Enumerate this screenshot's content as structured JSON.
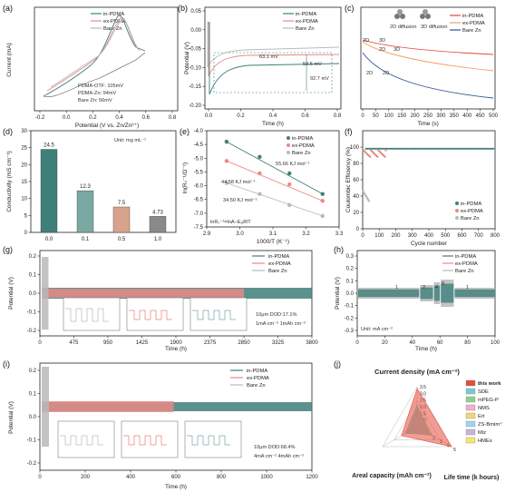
{
  "colors": {
    "in": "#3f7f7a",
    "ex": "#e88a86",
    "bare": "#b9b9b9",
    "blue": "#33549a",
    "orange": "#f3a06a",
    "red": "#e0463a"
  },
  "legend": {
    "in": "in-PDMA",
    "ex": "ex-PDMA",
    "bare": "Bare Zn"
  },
  "chart_data": [
    {
      "id": "a",
      "panel_label": "(a)",
      "type": "line",
      "xlabel": "Potential (V vs. Zn/Zn²⁺)",
      "ylabel": "Current (mA)",
      "xticks": [
        "-0.2",
        "0.0",
        "0.2",
        "0.4",
        "0.6",
        "0.8"
      ],
      "annotations": [
        "PDMA-OTF: 105mV",
        "PDMA-Zn: 94mV",
        "Bare Zn: 56mV"
      ],
      "series": [
        {
          "name": "in-PDMA"
        },
        {
          "name": "ex-PDMA"
        },
        {
          "name": "Bare Zn"
        }
      ]
    },
    {
      "id": "b",
      "panel_label": "(b)",
      "type": "line",
      "xlabel": "Time (h)",
      "ylabel": "Potential (V)",
      "xticks": [
        "0.0",
        "0.2",
        "0.4",
        "0.6",
        "0.8"
      ],
      "yticks": [
        "0.05",
        "0.00",
        "-0.05",
        "-0.10",
        "-0.15",
        "-0.20"
      ],
      "ylim": [
        -0.2,
        0.05
      ],
      "xlim": [
        0,
        0.8
      ],
      "annotations": [
        "63.1 mV",
        "59.5 mV",
        "92.7 mV"
      ],
      "series": [
        {
          "name": "in-PDMA",
          "plateau": -0.063
        },
        {
          "name": "ex-PDMA",
          "plateau": -0.0595
        },
        {
          "name": "Bare Zn",
          "plateau": -0.0927
        }
      ]
    },
    {
      "id": "c",
      "panel_label": "(c)",
      "type": "line",
      "xlabel": "Time (s)",
      "ylabel": "",
      "xticks": [
        "0",
        "50",
        "100",
        "150",
        "200",
        "250",
        "300",
        "350",
        "400",
        "450",
        "500"
      ],
      "annotations": [
        "2D",
        "3D",
        "2D",
        "3D",
        "2D",
        "2D",
        "2D diffusion",
        "3D diffusion"
      ],
      "series": [
        {
          "name": "in-PDMA"
        },
        {
          "name": "ex-PDMA"
        },
        {
          "name": "Bare Zn"
        }
      ]
    },
    {
      "id": "d",
      "panel_label": "(d)",
      "type": "bar",
      "xlabel": "Concentration",
      "ylabel": "Conductivity (mS cm⁻¹)",
      "unit_note": "Unit: mg mL⁻¹",
      "categories": [
        "0.0",
        "0.1",
        "0.5",
        "1.0"
      ],
      "values": [
        24.5,
        12.3,
        7.5,
        4.73
      ],
      "value_labels": [
        "24.5",
        "12.3",
        "7.5",
        "4.73"
      ],
      "yticks": [
        "0",
        "5",
        "10",
        "15",
        "20",
        "25",
        "30"
      ],
      "ylim": [
        0,
        30
      ]
    },
    {
      "id": "e",
      "panel_label": "(e)",
      "type": "scatter",
      "xlabel": "1000/T (K⁻¹)",
      "ylabel": "ln(Rₛ⁻¹/Ω⁻¹)",
      "xticks": [
        "2.9",
        "3.0",
        "3.1",
        "3.2",
        "3.3"
      ],
      "yticks": [
        "-4.0",
        "-4.5",
        "-5.0",
        "-5.5",
        "-6.0",
        "-6.5",
        "-7.0",
        "-7.5"
      ],
      "xlim": [
        2.9,
        3.3
      ],
      "ylim": [
        -7.5,
        -4.0
      ],
      "annotations": [
        "55.66 KJ mol⁻¹",
        "44.58 KJ mol⁻¹",
        "34.50 KJ mol⁻¹",
        "lnRₛ⁻¹=lnA−Eₐ/RT"
      ],
      "series": [
        {
          "name": "in-PDMA",
          "x": [
            2.96,
            3.06,
            3.15,
            3.25
          ],
          "y": [
            -4.4,
            -4.95,
            -5.55,
            -6.3
          ]
        },
        {
          "name": "ex-PDMA",
          "x": [
            2.96,
            3.06,
            3.15,
            3.25
          ],
          "y": [
            -5.1,
            -5.55,
            -5.95,
            -6.55
          ]
        },
        {
          "name": "Bare Zn",
          "x": [
            2.96,
            3.06,
            3.15,
            3.25
          ],
          "y": [
            -5.9,
            -6.3,
            -6.7,
            -7.1
          ]
        }
      ]
    },
    {
      "id": "f",
      "panel_label": "(f)",
      "type": "scatter",
      "xlabel": "Cycle number",
      "ylabel": "Coulombic Efficiency (%)",
      "xticks": [
        "0",
        "100",
        "200",
        "300",
        "400",
        "500",
        "600",
        "700",
        "800"
      ],
      "yticks": [
        "0",
        "20",
        "40",
        "60",
        "80",
        "100"
      ],
      "xlim": [
        0,
        800
      ],
      "ylim": [
        0,
        120
      ],
      "series": [
        {
          "name": "in-PDMA",
          "level": 98
        },
        {
          "name": "ex-PDMA",
          "level": 92
        },
        {
          "name": "Bare Zn",
          "level": 20
        }
      ]
    },
    {
      "id": "g",
      "panel_label": "(g)",
      "type": "line",
      "xlabel": "Time (h)",
      "ylabel": "Potential (V)",
      "xticks": [
        "0",
        "475",
        "950",
        "1425",
        "1900",
        "2375",
        "2850",
        "3325",
        "3800"
      ],
      "yticks": [
        "0.2",
        "0.1",
        "0.0",
        "-0.1",
        "-0.2"
      ],
      "xlim": [
        0,
        3800
      ],
      "annotations": [
        "10μm DOD:17.1%",
        "1mA cm⁻²   1mAh cm⁻²"
      ],
      "series": [
        {
          "name": "in-PDMA",
          "end_h": 3800
        },
        {
          "name": "ex-PDMA",
          "end_h": 2850
        },
        {
          "name": "Bare Zn",
          "end_h": 120
        }
      ]
    },
    {
      "id": "h",
      "panel_label": "(h)",
      "type": "line",
      "xlabel": "Time (h)",
      "ylabel": "Potential (V)",
      "xticks": [
        "0",
        "20",
        "40",
        "60",
        "80",
        "100"
      ],
      "yticks": [
        "0.3",
        "0.2",
        "0.1",
        "0.0",
        "-0.1",
        "-0.2",
        "-0.3"
      ],
      "xlim": [
        0,
        100
      ],
      "annotations": [
        "1",
        "2",
        "4",
        "8",
        "1",
        "Unit: mA cm⁻²"
      ],
      "series": [
        {
          "name": "in-PDMA"
        },
        {
          "name": "ex-PDMA"
        },
        {
          "name": "Bare Zn"
        }
      ]
    },
    {
      "id": "i",
      "panel_label": "(i)",
      "type": "line",
      "xlabel": "Time (h)",
      "ylabel": "Potential (V)",
      "xticks": [
        "0",
        "200",
        "400",
        "600",
        "800",
        "1000",
        "1200"
      ],
      "yticks": [
        "0.2",
        "0.1",
        "0.0",
        "-0.1",
        "-0.2"
      ],
      "xlim": [
        0,
        1200
      ],
      "annotations": [
        "10μm DOD:68.4%",
        "4mA cm⁻²   4mAh cm⁻²"
      ],
      "series": [
        {
          "name": "in-PDMA",
          "end_h": 1200
        },
        {
          "name": "ex-PDMA",
          "end_h": 590
        },
        {
          "name": "Bare Zn",
          "end_h": 40
        }
      ]
    },
    {
      "id": "j",
      "panel_label": "(j)",
      "type": "radar",
      "axes": [
        "Current density (mA cm⁻²)",
        "Areal capacity (mAh cm⁻²)",
        "Life time (k hours)"
      ],
      "ticks": [
        "1.0",
        "1.5",
        "2.0",
        "2.5",
        "3.0",
        "3.5"
      ],
      "life_ticks": [
        "1",
        "2",
        "3",
        "4",
        "5"
      ],
      "series": [
        {
          "name": "this work",
          "color": "#e74c3c"
        },
        {
          "name": "SDE",
          "color": "#7ec8d8"
        },
        {
          "name": "mPEG-P",
          "color": "#8fd18a"
        },
        {
          "name": "NMS",
          "color": "#f1b0cc"
        },
        {
          "name": "Ert",
          "color": "#f7d27a"
        },
        {
          "name": "ZS-Bmim⁺",
          "color": "#9dd6f0"
        },
        {
          "name": "Miz",
          "color": "#c8b3dd"
        },
        {
          "name": "HMEs",
          "color": "#f5e56b"
        }
      ]
    }
  ]
}
